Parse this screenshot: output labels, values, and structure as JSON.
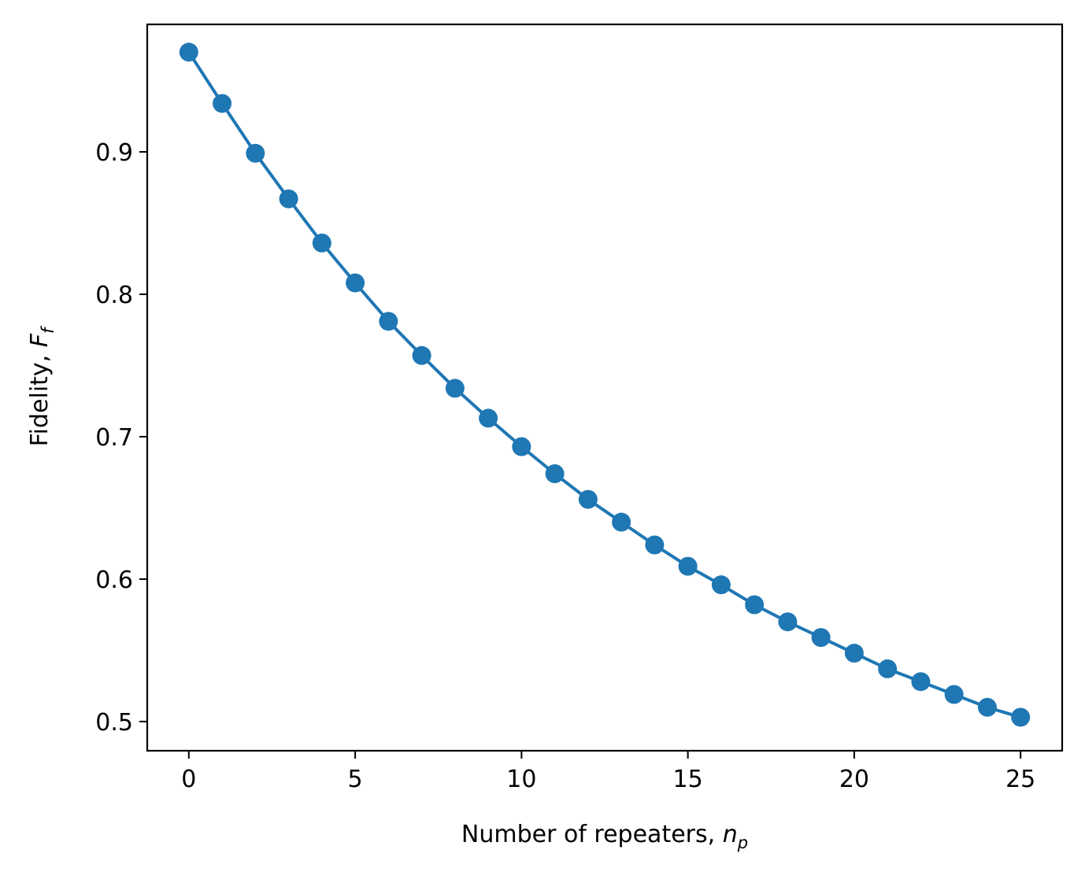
{
  "chart_data": {
    "type": "line",
    "xlabel": {
      "text": "Number of repeaters, ",
      "symbol": "n",
      "subscript": "p"
    },
    "ylabel": {
      "text": "Fidelity, ",
      "symbol": "F",
      "subscript": "f"
    },
    "xlim": [
      -1.25,
      26.25
    ],
    "ylim": [
      0.4795,
      0.9895
    ],
    "x_ticks": [
      0,
      5,
      10,
      15,
      20,
      25
    ],
    "x_tick_labels": [
      "0",
      "5",
      "10",
      "15",
      "20",
      "25"
    ],
    "y_ticks": [
      0.5,
      0.6,
      0.7,
      0.8,
      0.9
    ],
    "y_tick_labels": [
      "0.5",
      "0.6",
      "0.7",
      "0.8",
      "0.9"
    ],
    "grid": false,
    "series": [
      {
        "color": "#1f77b4",
        "marker": "circle",
        "x": [
          0,
          1,
          2,
          3,
          4,
          5,
          6,
          7,
          8,
          9,
          10,
          11,
          12,
          13,
          14,
          15,
          16,
          17,
          18,
          19,
          20,
          21,
          22,
          23,
          24,
          25
        ],
        "y": [
          0.97,
          0.934,
          0.899,
          0.867,
          0.836,
          0.808,
          0.781,
          0.757,
          0.734,
          0.713,
          0.693,
          0.674,
          0.656,
          0.64,
          0.624,
          0.609,
          0.596,
          0.582,
          0.57,
          0.559,
          0.548,
          0.537,
          0.528,
          0.519,
          0.51,
          0.503
        ]
      }
    ]
  }
}
